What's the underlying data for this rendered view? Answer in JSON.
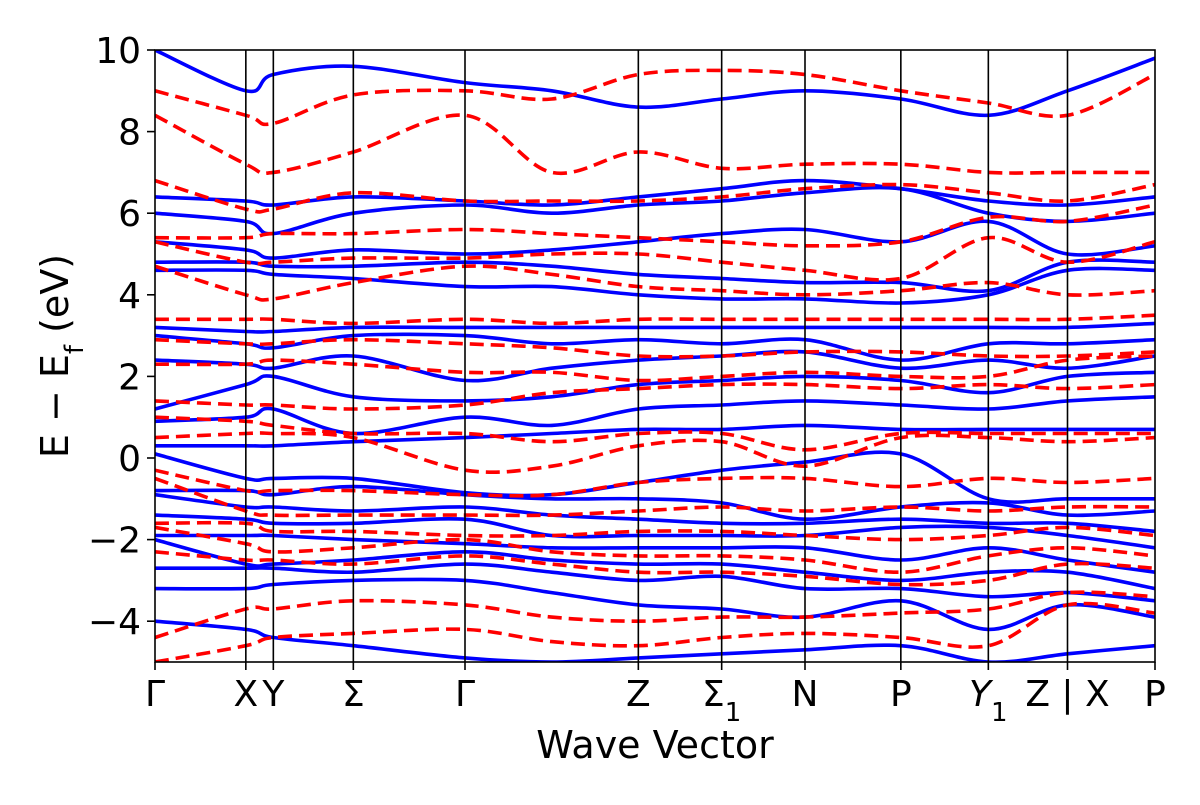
{
  "chart_data": {
    "type": "line",
    "title": "",
    "xlabel": "Wave Vector",
    "ylabel": "E − E",
    "ylabel_sub": "f",
    "ylabel_unit": " (eV)",
    "ylim": [
      -5,
      10
    ],
    "yticks": [
      -4,
      -2,
      0,
      2,
      4,
      6,
      8,
      10
    ],
    "ytick_labels": [
      "−4",
      "−2",
      "0",
      "2",
      "4",
      "6",
      "8",
      "10"
    ],
    "grid": false,
    "legend": "none",
    "xlim": [
      0,
      10.95
    ],
    "kpath": [
      {
        "label": "Γ",
        "x": 0.0
      },
      {
        "label": "X",
        "x": 1.09
      },
      {
        "label": "Y",
        "x": 1.42
      },
      {
        "label": "Σ",
        "x": 2.38
      },
      {
        "label": "Γ",
        "x": 3.72
      },
      {
        "label": "Z",
        "x": 5.8
      },
      {
        "label": "Σ",
        "sub": "1",
        "x": 6.8
      },
      {
        "label": "N",
        "x": 7.8
      },
      {
        "label": "P",
        "x": 8.95
      },
      {
        "label": "Y",
        "sub": "1",
        "italic": true,
        "x": 10.0
      },
      {
        "label": "Z | X",
        "x": 10.95
      },
      {
        "label": "P",
        "x": 12.0
      }
    ],
    "segment_break_x": 10.95,
    "series_styles": [
      {
        "style": "solid",
        "color": "#0000ff"
      },
      {
        "style": "dashed",
        "color": "#ff0000"
      }
    ],
    "x": [
      0.0,
      1.09,
      1.42,
      2.38,
      3.72,
      4.76,
      5.8,
      6.8,
      7.8,
      8.95,
      10.0,
      10.95,
      12.0
    ],
    "blue_bands": [
      [
        -4.0,
        -4.2,
        -4.4,
        -4.6,
        -4.9,
        -5.0,
        -4.9,
        -4.8,
        -4.7,
        -4.6,
        -5.0,
        -4.8,
        -4.6
      ],
      [
        -3.2,
        -3.2,
        -3.1,
        -3.0,
        -3.0,
        -3.3,
        -3.6,
        -3.7,
        -3.9,
        -3.5,
        -4.2,
        -3.6,
        -3.9
      ],
      [
        -2.7,
        -2.7,
        -2.7,
        -2.8,
        -2.6,
        -2.8,
        -3.0,
        -2.9,
        -3.2,
        -3.2,
        -3.4,
        -3.3,
        -3.5
      ],
      [
        -2.0,
        -2.6,
        -2.6,
        -2.5,
        -2.3,
        -2.5,
        -2.6,
        -2.6,
        -2.8,
        -3.0,
        -2.8,
        -2.8,
        -3.2
      ],
      [
        -1.9,
        -1.9,
        -1.9,
        -2.0,
        -2.1,
        -2.2,
        -2.2,
        -2.2,
        -2.2,
        -2.5,
        -2.2,
        -2.5,
        -2.8
      ],
      [
        -1.4,
        -1.5,
        -1.6,
        -1.6,
        -1.5,
        -1.9,
        -1.9,
        -1.9,
        -1.9,
        -1.7,
        -1.7,
        -1.9,
        -2.2
      ],
      [
        -0.9,
        -1.2,
        -1.2,
        -1.3,
        -1.2,
        -1.4,
        -1.5,
        -1.6,
        -1.6,
        -1.5,
        -1.6,
        -1.6,
        -1.8
      ],
      [
        -0.8,
        -0.8,
        -0.9,
        -0.7,
        -0.9,
        -1.0,
        -1.0,
        -1.1,
        -1.5,
        -1.2,
        -1.1,
        -1.4,
        -1.3
      ],
      [
        0.1,
        -0.5,
        -0.5,
        -0.5,
        -0.85,
        -0.9,
        -0.6,
        -0.3,
        -0.1,
        0.1,
        -1.0,
        -1.0,
        -1.0
      ],
      [
        0.3,
        0.3,
        0.3,
        0.4,
        0.5,
        0.6,
        0.7,
        0.7,
        0.8,
        0.7,
        0.7,
        0.7,
        0.7
      ],
      [
        0.9,
        1.0,
        1.2,
        0.6,
        1.0,
        0.8,
        1.2,
        1.3,
        1.4,
        1.3,
        1.2,
        1.4,
        1.5
      ],
      [
        1.2,
        1.8,
        2.0,
        1.5,
        1.4,
        1.5,
        1.8,
        1.9,
        2.0,
        1.9,
        1.6,
        2.0,
        2.1
      ],
      [
        2.4,
        2.3,
        2.2,
        2.5,
        1.9,
        2.2,
        2.4,
        2.5,
        2.6,
        2.2,
        2.4,
        2.2,
        2.5
      ],
      [
        3.0,
        2.8,
        2.7,
        3.0,
        3.0,
        2.8,
        2.9,
        2.8,
        2.9,
        2.4,
        2.8,
        2.8,
        2.9
      ],
      [
        3.2,
        3.1,
        3.1,
        3.2,
        3.2,
        3.2,
        3.2,
        3.2,
        3.2,
        3.2,
        3.2,
        3.2,
        3.3
      ],
      [
        4.6,
        4.6,
        4.5,
        4.4,
        4.2,
        4.2,
        4.0,
        3.9,
        3.9,
        3.8,
        4.0,
        4.6,
        4.6
      ],
      [
        4.8,
        4.8,
        4.7,
        4.7,
        4.8,
        4.7,
        4.5,
        4.4,
        4.3,
        4.3,
        4.1,
        4.8,
        4.8
      ],
      [
        5.3,
        5.1,
        4.9,
        5.1,
        5.0,
        5.1,
        5.3,
        5.5,
        5.6,
        5.3,
        5.8,
        5.0,
        5.2
      ],
      [
        6.0,
        5.8,
        5.5,
        6.0,
        6.2,
        6.0,
        6.2,
        6.3,
        6.5,
        6.6,
        6.0,
        5.8,
        6.0
      ],
      [
        6.4,
        6.3,
        6.2,
        6.4,
        6.3,
        6.2,
        6.4,
        6.6,
        6.8,
        6.6,
        6.3,
        6.2,
        6.4
      ],
      [
        10.0,
        9.0,
        9.4,
        9.6,
        9.2,
        9.0,
        8.6,
        8.8,
        9.0,
        8.8,
        8.4,
        9.0,
        9.8
      ]
    ],
    "red_bands": [
      [
        -5.0,
        -4.6,
        -4.4,
        -4.3,
        -4.2,
        -4.5,
        -4.6,
        -4.4,
        -4.3,
        -4.4,
        -4.6,
        -3.6,
        -3.8
      ],
      [
        -4.4,
        -3.7,
        -3.7,
        -3.5,
        -3.6,
        -3.9,
        -4.0,
        -3.9,
        -3.9,
        -3.8,
        -3.7,
        -3.3,
        -3.4
      ],
      [
        -2.3,
        -2.5,
        -2.5,
        -2.6,
        -2.4,
        -2.6,
        -2.8,
        -2.8,
        -2.9,
        -3.1,
        -3.0,
        -2.6,
        -2.7
      ],
      [
        -1.7,
        -2.1,
        -2.3,
        -2.2,
        -2.0,
        -2.3,
        -2.4,
        -2.4,
        -2.5,
        -2.8,
        -2.4,
        -2.2,
        -2.4
      ],
      [
        -1.6,
        -1.6,
        -1.8,
        -1.8,
        -1.9,
        -1.9,
        -1.8,
        -1.8,
        -1.9,
        -2.0,
        -1.9,
        -1.7,
        -1.9
      ],
      [
        -0.5,
        -1.3,
        -1.4,
        -1.4,
        -1.4,
        -1.4,
        -1.3,
        -1.2,
        -1.3,
        -1.2,
        -1.3,
        -1.2,
        -1.2
      ],
      [
        -0.3,
        -0.8,
        -0.8,
        -0.8,
        -0.9,
        -0.9,
        -0.6,
        -0.5,
        -0.5,
        -0.7,
        -0.5,
        -0.6,
        -0.5
      ],
      [
        0.5,
        0.6,
        0.6,
        0.5,
        -0.3,
        -0.2,
        0.3,
        0.4,
        -0.2,
        0.5,
        0.5,
        0.4,
        0.5
      ],
      [
        1.0,
        0.9,
        0.8,
        0.6,
        0.6,
        0.4,
        0.6,
        0.6,
        0.2,
        0.6,
        0.6,
        0.6,
        0.6
      ],
      [
        1.4,
        1.3,
        1.3,
        1.2,
        1.3,
        1.6,
        1.7,
        1.8,
        1.8,
        1.7,
        1.8,
        1.7,
        1.8
      ],
      [
        2.3,
        2.3,
        2.4,
        2.3,
        2.1,
        2.1,
        1.9,
        2.0,
        2.1,
        2.0,
        2.0,
        2.4,
        2.5
      ],
      [
        2.9,
        2.8,
        2.8,
        2.9,
        2.8,
        2.7,
        2.5,
        2.5,
        2.6,
        2.6,
        2.5,
        2.5,
        2.6
      ],
      [
        3.4,
        3.4,
        3.4,
        3.3,
        3.4,
        3.3,
        3.4,
        3.4,
        3.4,
        3.4,
        3.4,
        3.4,
        3.5
      ],
      [
        4.7,
        4.0,
        3.9,
        4.3,
        4.7,
        4.5,
        4.2,
        4.1,
        4.0,
        4.1,
        4.3,
        4.0,
        4.1
      ],
      [
        5.3,
        4.8,
        4.8,
        4.9,
        4.9,
        5.0,
        5.0,
        4.8,
        4.6,
        4.4,
        5.4,
        4.8,
        5.3
      ],
      [
        5.4,
        5.4,
        5.5,
        5.5,
        5.6,
        5.5,
        5.4,
        5.3,
        5.2,
        5.3,
        5.9,
        5.8,
        6.2
      ],
      [
        6.8,
        6.1,
        6.1,
        6.5,
        6.3,
        6.3,
        6.3,
        6.4,
        6.6,
        6.7,
        6.5,
        6.3,
        6.7
      ],
      [
        8.4,
        7.2,
        7.0,
        7.5,
        8.4,
        7.0,
        7.5,
        7.1,
        7.2,
        7.2,
        7.0,
        7.0,
        7.0
      ],
      [
        9.0,
        8.4,
        8.2,
        8.9,
        9.0,
        8.8,
        9.4,
        9.5,
        9.4,
        9.0,
        8.7,
        8.4,
        9.4
      ]
    ]
  }
}
